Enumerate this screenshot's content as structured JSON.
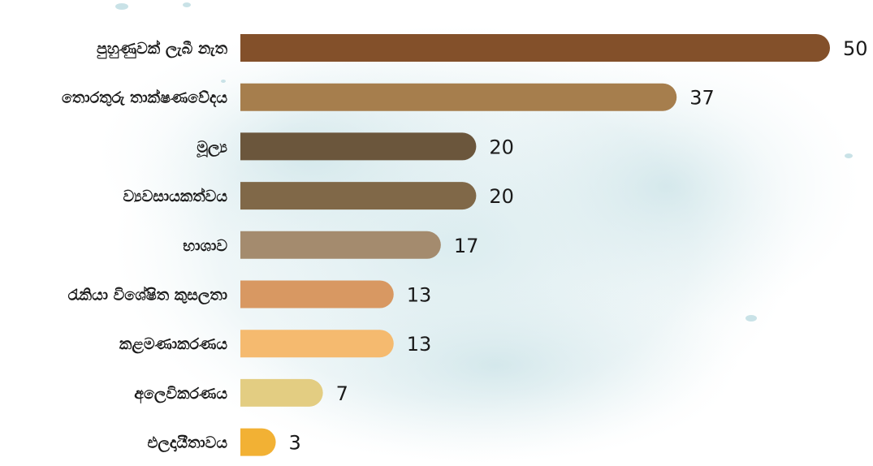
{
  "chart_data": {
    "type": "bar",
    "orientation": "horizontal",
    "categories": [
      "පුහුණුවක් ලැබී නැත",
      "තොරතුරු තාක්ෂණවේදය",
      "මූල්‍ය",
      "ව්‍යවසායකත්වය",
      "භාශාව",
      "රැකියා විශේෂිත කුසලතා",
      "කළමණාකරණය",
      "අලෙවිකරණය",
      "එලදායීතාවය"
    ],
    "values": [
      50,
      37,
      20,
      20,
      17,
      13,
      13,
      7,
      3
    ],
    "colors": [
      "#83502a",
      "#a67e4d",
      "#6b563c",
      "#806848",
      "#a48b6e",
      "#d89862",
      "#f5ba6f",
      "#e3cd82",
      "#f2b134"
    ],
    "xlim": [
      0,
      50
    ],
    "grid": false,
    "legend": "none"
  }
}
